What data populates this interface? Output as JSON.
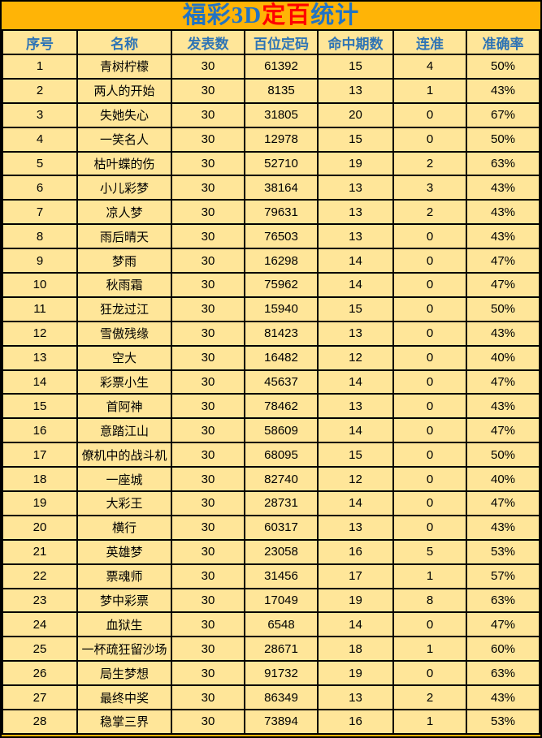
{
  "title": {
    "parts": [
      {
        "text": "福彩3D",
        "color": "#2173C4"
      },
      {
        "text": "定百",
        "color": "#FF0000"
      },
      {
        "text": "统计",
        "color": "#2173C4"
      }
    ]
  },
  "colors": {
    "background_orange": "#FFB406",
    "cell_yellow": "#FFE699",
    "header_text_blue": "#2E74B5",
    "title_blue": "#2173C4",
    "title_red": "#FF0000",
    "border_black": "#000000",
    "body_text": "#000000"
  },
  "chart_data": {
    "type": "table",
    "title": "福彩3D定百统计",
    "columns": [
      "序号",
      "名称",
      "发表数",
      "百位定码",
      "命中期数",
      "连准",
      "准确率"
    ],
    "rows": [
      [
        "1",
        "青树柠檬",
        "30",
        "61392",
        "15",
        "4",
        "50%"
      ],
      [
        "2",
        "两人的开始",
        "30",
        "8135",
        "13",
        "1",
        "43%"
      ],
      [
        "3",
        "失她失心",
        "30",
        "31805",
        "20",
        "0",
        "67%"
      ],
      [
        "4",
        "一笑名人",
        "30",
        "12978",
        "15",
        "0",
        "50%"
      ],
      [
        "5",
        "枯叶蝶的伤",
        "30",
        "52710",
        "19",
        "2",
        "63%"
      ],
      [
        "6",
        "小儿彩梦",
        "30",
        "38164",
        "13",
        "3",
        "43%"
      ],
      [
        "7",
        "凉人梦",
        "30",
        "79631",
        "13",
        "2",
        "43%"
      ],
      [
        "8",
        "雨后晴天",
        "30",
        "76503",
        "13",
        "0",
        "43%"
      ],
      [
        "9",
        "梦雨",
        "30",
        "16298",
        "14",
        "0",
        "47%"
      ],
      [
        "10",
        "秋雨霜",
        "30",
        "75962",
        "14",
        "0",
        "47%"
      ],
      [
        "11",
        "狂龙过江",
        "30",
        "15940",
        "15",
        "0",
        "50%"
      ],
      [
        "12",
        "雪傲残缘",
        "30",
        "81423",
        "13",
        "0",
        "43%"
      ],
      [
        "13",
        "空大",
        "30",
        "16482",
        "12",
        "0",
        "40%"
      ],
      [
        "14",
        "彩票小生",
        "30",
        "45637",
        "14",
        "0",
        "47%"
      ],
      [
        "15",
        "首阿神",
        "30",
        "78462",
        "13",
        "0",
        "43%"
      ],
      [
        "16",
        "意踏江山",
        "30",
        "58609",
        "14",
        "0",
        "47%"
      ],
      [
        "17",
        "僚机中的战斗机",
        "30",
        "68095",
        "15",
        "0",
        "50%"
      ],
      [
        "18",
        "一座城",
        "30",
        "82740",
        "12",
        "0",
        "40%"
      ],
      [
        "19",
        "大彩王",
        "30",
        "28731",
        "14",
        "0",
        "47%"
      ],
      [
        "20",
        "横行",
        "30",
        "60317",
        "13",
        "0",
        "43%"
      ],
      [
        "21",
        "英雄梦",
        "30",
        "23058",
        "16",
        "5",
        "53%"
      ],
      [
        "22",
        "票魂师",
        "30",
        "31456",
        "17",
        "1",
        "57%"
      ],
      [
        "23",
        "梦中彩票",
        "30",
        "17049",
        "19",
        "8",
        "63%"
      ],
      [
        "24",
        "血狱生",
        "30",
        "6548",
        "14",
        "0",
        "47%"
      ],
      [
        "25",
        "一杯疏狂留沙场",
        "30",
        "28671",
        "18",
        "1",
        "60%"
      ],
      [
        "26",
        "局生梦想",
        "30",
        "91732",
        "19",
        "0",
        "63%"
      ],
      [
        "27",
        "最终中奖",
        "30",
        "86349",
        "13",
        "2",
        "43%"
      ],
      [
        "28",
        "稳掌三界",
        "30",
        "73894",
        "16",
        "1",
        "53%"
      ]
    ]
  }
}
